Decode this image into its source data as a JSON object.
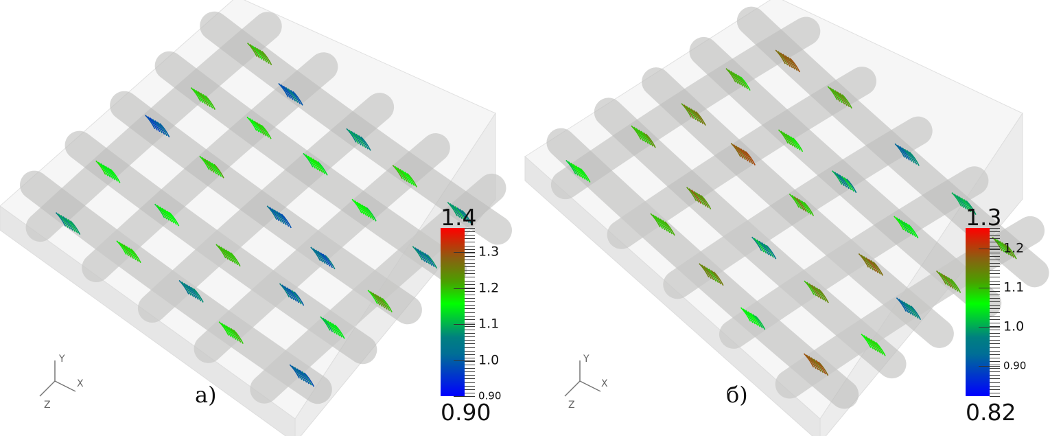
{
  "panels": [
    {
      "label": "а)",
      "colorbar": {
        "max_label": "1.4",
        "min_label": "0.90",
        "range": [
          0.9,
          1.367
        ],
        "ticks": [
          {
            "value": 1.3,
            "label": "1.3"
          },
          {
            "value": 1.2,
            "label": "1.2"
          },
          {
            "value": 1.1,
            "label": "1.1"
          },
          {
            "value": 1.0,
            "label": "1.0"
          },
          {
            "value": 0.9,
            "label": "0.90"
          }
        ],
        "colors": [
          "#0000ff",
          "#008080",
          "#00ff00",
          "#8a6010",
          "#ff0000"
        ]
      },
      "axes": {
        "y": "Y",
        "x": "X",
        "z": "Z"
      }
    },
    {
      "label": "б)",
      "colorbar": {
        "max_label": "1.3",
        "min_label": "0.82",
        "range": [
          0.823,
          1.253
        ],
        "ticks": [
          {
            "value": 1.2,
            "label": "1.2"
          },
          {
            "value": 1.1,
            "label": "1.1"
          },
          {
            "value": 1.0,
            "label": "1.0"
          },
          {
            "value": 0.9,
            "label": "0.90"
          }
        ],
        "colors": [
          "#0000ff",
          "#008080",
          "#00ff00",
          "#8a6010",
          "#ff0000"
        ]
      },
      "axes": {
        "y": "Y",
        "x": "X",
        "z": "Z"
      }
    }
  ]
}
